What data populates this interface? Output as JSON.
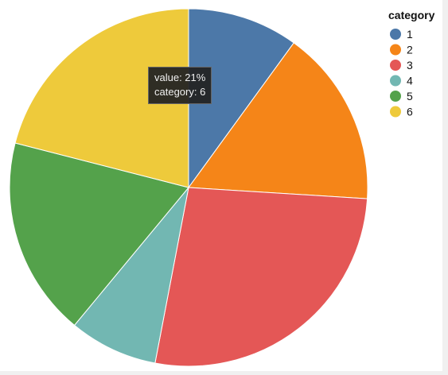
{
  "chart_data": {
    "type": "pie",
    "legend_title": "category",
    "legend_position": "top-right",
    "categories": [
      "1",
      "2",
      "3",
      "4",
      "5",
      "6"
    ],
    "values": [
      10,
      16,
      27,
      8,
      18,
      21
    ],
    "value_unit": "%",
    "colors": [
      "#4c78a8",
      "#f58518",
      "#e45756",
      "#72b7b2",
      "#54a24b",
      "#eeca3b"
    ]
  },
  "tooltip": {
    "line1": "value: 21%",
    "line2": "category: 6"
  }
}
